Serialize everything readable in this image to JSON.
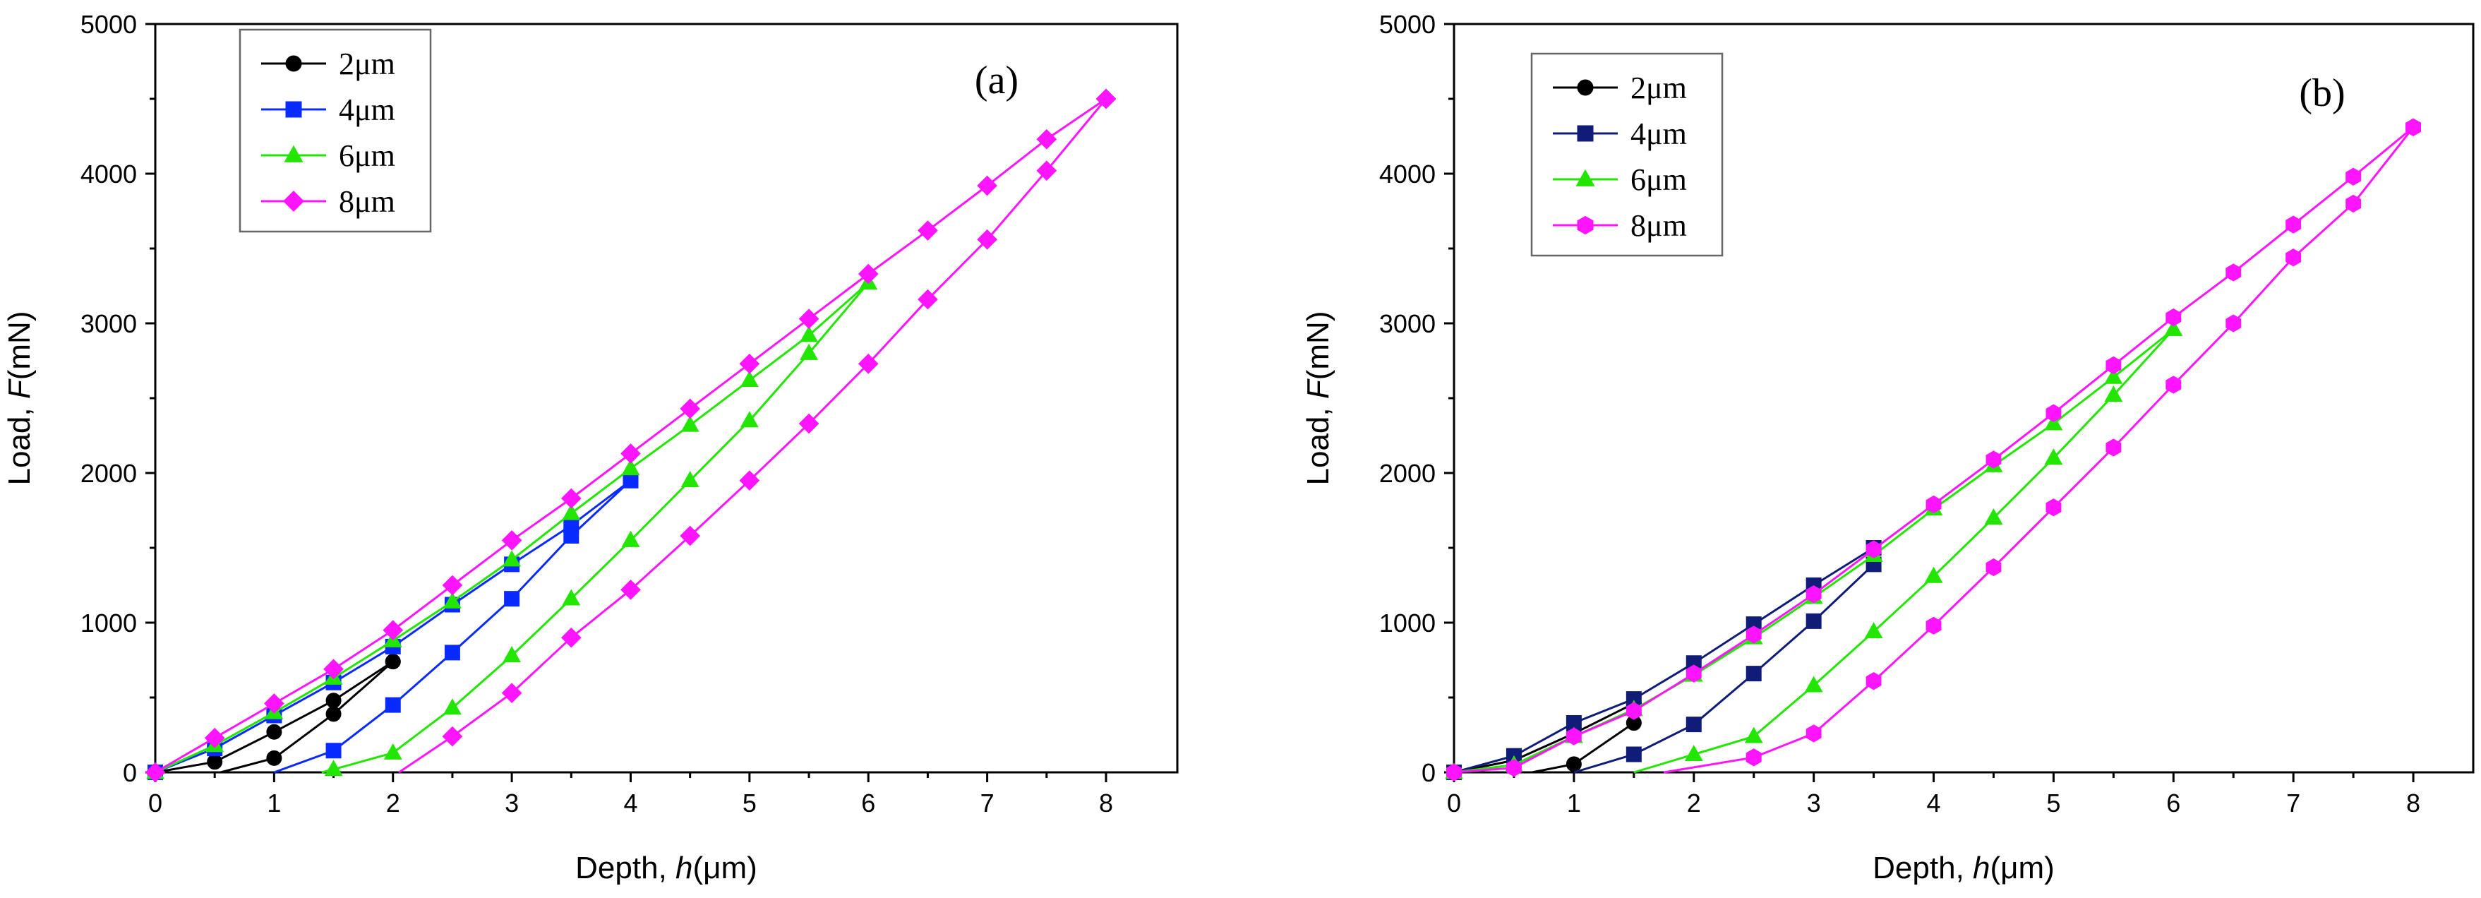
{
  "colors": {
    "black": "#000000",
    "blue": "#0a2bff",
    "navy": "#0f1c78",
    "green": "#22e600",
    "magenta": "#ff14ff"
  },
  "chart_data": [
    {
      "type": "line",
      "panel_label": "(a)",
      "ylabel_prefix": "Load, ",
      "ylabel_italic": "F",
      "ylabel_suffix": "(mN)",
      "xlabel_prefix": "Depth, ",
      "xlabel_italic": "h",
      "xlabel_suffix": "(μm)",
      "xlim": [
        0,
        8.6
      ],
      "ylim": [
        0,
        5000
      ],
      "xticks": [
        0,
        1,
        2,
        3,
        4,
        5,
        6,
        7,
        8
      ],
      "yticks": [
        0,
        1000,
        2000,
        3000,
        4000,
        5000
      ],
      "legend_position": "top-left",
      "series": [
        {
          "name": "2μm",
          "color": "black",
          "marker": "circle",
          "loading": [
            [
              0,
              0
            ],
            [
              0.5,
              70
            ],
            [
              1,
              270
            ],
            [
              1.5,
              480
            ],
            [
              2,
              740
            ]
          ],
          "unloading": [
            [
              2,
              740
            ],
            [
              1.5,
              390
            ],
            [
              1,
              95
            ],
            [
              0.55,
              0
            ]
          ]
        },
        {
          "name": "4μm",
          "color": "blue",
          "marker": "square",
          "loading": [
            [
              0,
              0
            ],
            [
              0.5,
              160
            ],
            [
              1,
              380
            ],
            [
              1.5,
              600
            ],
            [
              2,
              840
            ],
            [
              2.5,
              1120
            ],
            [
              3,
              1390
            ],
            [
              3.5,
              1650
            ],
            [
              4,
              1950
            ]
          ],
          "unloading": [
            [
              4,
              1950
            ],
            [
              3.5,
              1580
            ],
            [
              3,
              1160
            ],
            [
              2.5,
              800
            ],
            [
              2,
              450
            ],
            [
              1.5,
              145
            ],
            [
              1,
              0
            ]
          ]
        },
        {
          "name": "6μm",
          "color": "green",
          "marker": "triangle",
          "loading": [
            [
              0,
              0
            ],
            [
              0.5,
              180
            ],
            [
              1,
              400
            ],
            [
              1.5,
              630
            ],
            [
              2,
              880
            ],
            [
              2.5,
              1140
            ],
            [
              3,
              1420
            ],
            [
              3.5,
              1730
            ],
            [
              4,
              2030
            ],
            [
              4.5,
              2320
            ],
            [
              5,
              2620
            ],
            [
              5.5,
              2920
            ],
            [
              6,
              3270
            ]
          ],
          "unloading": [
            [
              6,
              3270
            ],
            [
              5.5,
              2800
            ],
            [
              5,
              2350
            ],
            [
              4.5,
              1950
            ],
            [
              4,
              1550
            ],
            [
              3.5,
              1160
            ],
            [
              3,
              780
            ],
            [
              2.5,
              430
            ],
            [
              2,
              130
            ],
            [
              1.5,
              20
            ],
            [
              1.4,
              0
            ]
          ]
        },
        {
          "name": "8μm",
          "color": "magenta",
          "marker": "diamond",
          "loading": [
            [
              0,
              0
            ],
            [
              0.5,
              230
            ],
            [
              1,
              460
            ],
            [
              1.5,
              690
            ],
            [
              2,
              950
            ],
            [
              2.5,
              1250
            ],
            [
              3,
              1550
            ],
            [
              3.5,
              1830
            ],
            [
              4,
              2130
            ],
            [
              4.5,
              2430
            ],
            [
              5,
              2730
            ],
            [
              5.5,
              3030
            ],
            [
              6,
              3330
            ],
            [
              6.5,
              3620
            ],
            [
              7,
              3920
            ],
            [
              7.5,
              4230
            ],
            [
              8,
              4500
            ]
          ],
          "unloading": [
            [
              8,
              4500
            ],
            [
              7.5,
              4020
            ],
            [
              7,
              3560
            ],
            [
              6.5,
              3160
            ],
            [
              6,
              2730
            ],
            [
              5.5,
              2330
            ],
            [
              5,
              1950
            ],
            [
              4.5,
              1580
            ],
            [
              4,
              1220
            ],
            [
              3.5,
              900
            ],
            [
              3,
              530
            ],
            [
              2.5,
              240
            ],
            [
              2.05,
              0
            ]
          ]
        }
      ]
    },
    {
      "type": "line",
      "panel_label": "(b)",
      "ylabel_prefix": "Load, ",
      "ylabel_italic": "F",
      "ylabel_suffix": "(mN)",
      "xlabel_prefix": "Depth, ",
      "xlabel_italic": "h",
      "xlabel_suffix": "(μm)",
      "xlim": [
        0,
        8.5
      ],
      "ylim": [
        0,
        5000
      ],
      "xticks": [
        0,
        1,
        2,
        3,
        4,
        5,
        6,
        7,
        8
      ],
      "yticks": [
        0,
        1000,
        2000,
        3000,
        4000,
        5000
      ],
      "legend_position": "top-left",
      "series": [
        {
          "name": "2μm",
          "color": "black",
          "marker": "circle",
          "loading": [
            [
              0,
              0
            ],
            [
              0.5,
              80
            ],
            [
              1,
              260
            ],
            [
              1.5,
              460
            ]
          ],
          "unloading": [
            [
              1.5,
              460
            ],
            [
              1.5,
              330
            ],
            [
              1,
              55
            ],
            [
              0.65,
              0
            ]
          ]
        },
        {
          "name": "4μm",
          "color": "navy",
          "marker": "square",
          "loading": [
            [
              0,
              0
            ],
            [
              0.5,
              110
            ],
            [
              1,
              330
            ],
            [
              1.5,
              490
            ],
            [
              2,
              730
            ],
            [
              2.5,
              990
            ],
            [
              3,
              1250
            ],
            [
              3.5,
              1500
            ]
          ],
          "unloading": [
            [
              3.5,
              1500
            ],
            [
              3.5,
              1390
            ],
            [
              3,
              1010
            ],
            [
              2.5,
              660
            ],
            [
              2,
              320
            ],
            [
              1.5,
              120
            ],
            [
              1,
              0
            ]
          ]
        },
        {
          "name": "6μm",
          "color": "green",
          "marker": "triangle",
          "loading": [
            [
              0,
              0
            ],
            [
              0.5,
              50
            ],
            [
              1,
              240
            ],
            [
              1.5,
              420
            ],
            [
              2,
              650
            ],
            [
              2.5,
              900
            ],
            [
              3,
              1170
            ],
            [
              3.5,
              1450
            ],
            [
              4,
              1760
            ],
            [
              4.5,
              2050
            ],
            [
              5,
              2330
            ],
            [
              5.5,
              2640
            ],
            [
              6,
              2960
            ]
          ],
          "unloading": [
            [
              6,
              2960
            ],
            [
              5.5,
              2520
            ],
            [
              5,
              2100
            ],
            [
              4.5,
              1700
            ],
            [
              4,
              1310
            ],
            [
              3.5,
              940
            ],
            [
              3,
              580
            ],
            [
              2.5,
              240
            ],
            [
              2,
              120
            ],
            [
              1.5,
              0
            ]
          ]
        },
        {
          "name": "8μm",
          "color": "magenta",
          "marker": "hexagon",
          "loading": [
            [
              0,
              0
            ],
            [
              0.5,
              30
            ],
            [
              1,
              240
            ],
            [
              1.5,
              410
            ],
            [
              2,
              660
            ],
            [
              2.5,
              920
            ],
            [
              3,
              1190
            ],
            [
              3.5,
              1490
            ],
            [
              4,
              1790
            ],
            [
              4.5,
              2090
            ],
            [
              5,
              2400
            ],
            [
              5.5,
              2720
            ],
            [
              6,
              3040
            ],
            [
              6.5,
              3340
            ],
            [
              7,
              3660
            ],
            [
              7.5,
              3980
            ],
            [
              8,
              4310
            ]
          ],
          "unloading": [
            [
              8,
              4310
            ],
            [
              7.5,
              3800
            ],
            [
              7,
              3440
            ],
            [
              6.5,
              3000
            ],
            [
              6,
              2590
            ],
            [
              5.5,
              2170
            ],
            [
              5,
              1770
            ],
            [
              4.5,
              1370
            ],
            [
              4,
              980
            ],
            [
              3.5,
              610
            ],
            [
              3,
              260
            ],
            [
              2.5,
              100
            ],
            [
              1.75,
              0
            ]
          ]
        }
      ]
    }
  ]
}
